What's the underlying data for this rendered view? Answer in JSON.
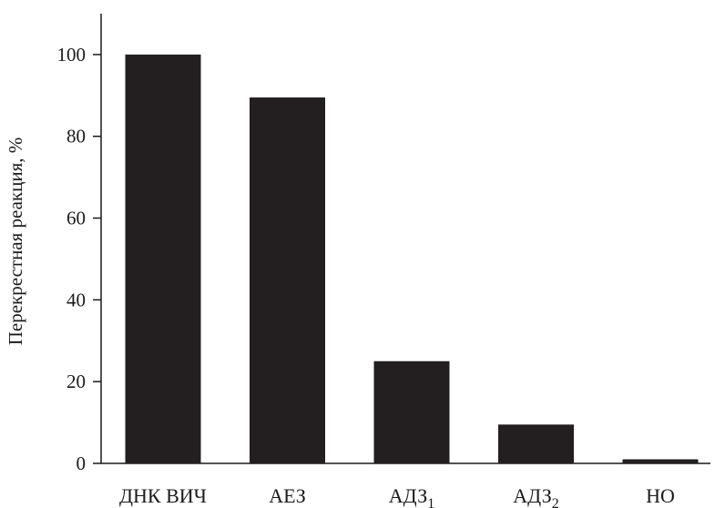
{
  "chart_data": {
    "type": "bar",
    "categories": [
      {
        "text": "ДНК ВИЧ",
        "sub": ""
      },
      {
        "text": "АЕЗ",
        "sub": ""
      },
      {
        "text": "АДЗ",
        "sub": "1"
      },
      {
        "text": "АДЗ",
        "sub": "2"
      },
      {
        "text": "НО",
        "sub": ""
      }
    ],
    "values": [
      100,
      89.5,
      25,
      9.5,
      1
    ],
    "ylabel": "Перекрестная реакция, %",
    "xlabel": "",
    "title": "",
    "ylim": [
      0,
      110
    ],
    "yticks": [
      0,
      20,
      40,
      60,
      80,
      100
    ],
    "ytick_labels": [
      "0",
      "20",
      "40",
      "60",
      "80",
      "100"
    ],
    "grid": false,
    "bar_color": "#231f20"
  }
}
